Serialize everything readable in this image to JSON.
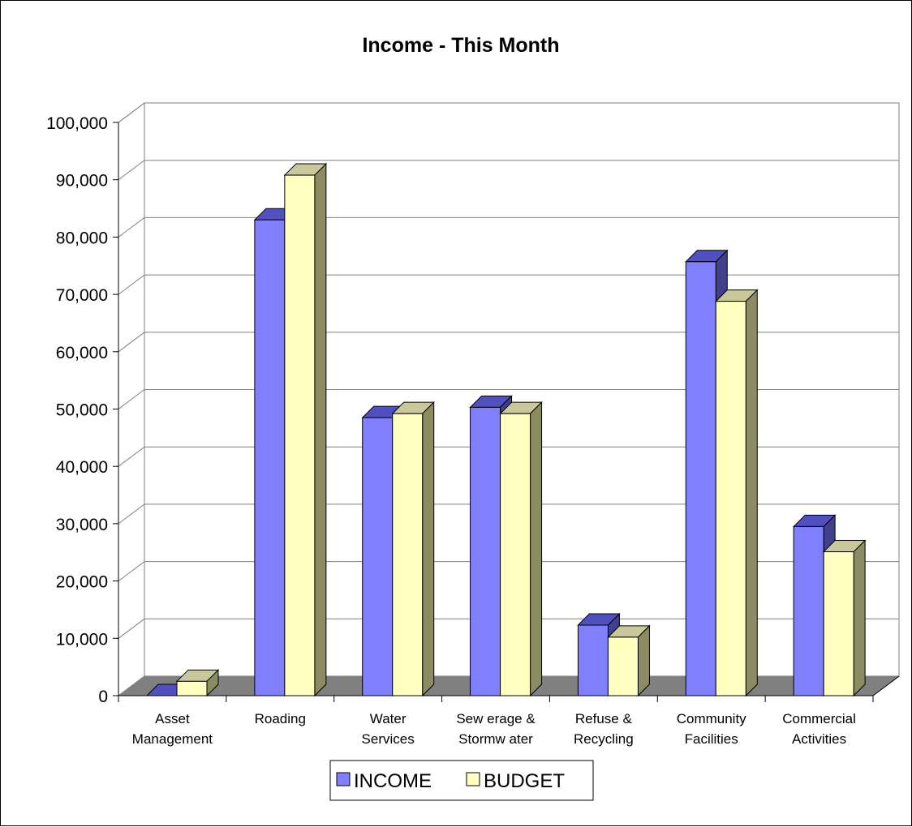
{
  "chart_data": {
    "type": "bar",
    "title": "Income - This Month",
    "xlabel": "",
    "ylabel": "",
    "categories": [
      [
        "Asset",
        "Management"
      ],
      [
        "Roading"
      ],
      [
        "Water",
        "Services"
      ],
      [
        "Sew erage &",
        "Stormw ater"
      ],
      [
        "Refuse &",
        "Recycling"
      ],
      [
        "Community",
        "Facilities"
      ],
      [
        "Commercial",
        "Activities"
      ]
    ],
    "series": [
      {
        "name": "INCOME",
        "color": "#8080ff",
        "values": [
          0,
          83000,
          48500,
          50300,
          12300,
          75700,
          29500
        ]
      },
      {
        "name": "BUDGET",
        "color": "#ffffc0",
        "values": [
          2500,
          90800,
          49200,
          49200,
          10200,
          68800,
          25100
        ]
      }
    ],
    "ylim": [
      0,
      100000
    ],
    "yticks": [
      0,
      10000,
      20000,
      30000,
      40000,
      50000,
      60000,
      70000,
      80000,
      90000,
      100000
    ],
    "ytick_labels": [
      "0",
      "10,000",
      "20,000",
      "30,000",
      "40,000",
      "50,000",
      "60,000",
      "70,000",
      "80,000",
      "90,000",
      "100,000"
    ],
    "grid": true,
    "three_d": true,
    "legend_position": "bottom"
  }
}
